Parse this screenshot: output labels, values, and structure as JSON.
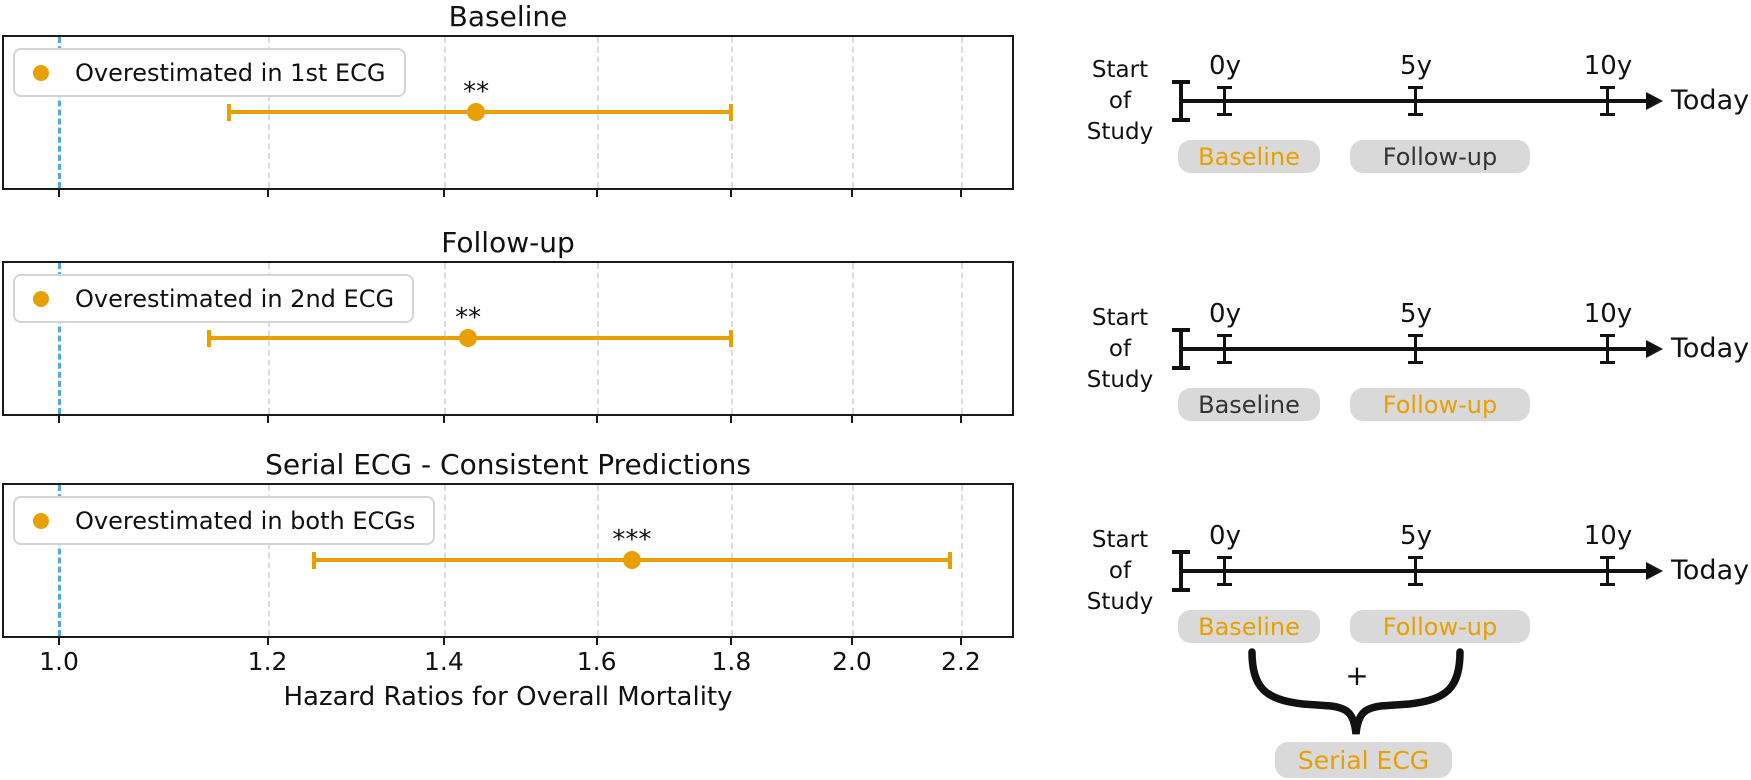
{
  "chart_data": {
    "type": "scatter",
    "subtype": "forest-plot",
    "xlabel": "Hazard Ratios for Overall Mortality",
    "xscale": "log",
    "xticks": [
      1.0,
      1.2,
      1.4,
      1.6,
      1.8,
      2.0,
      2.2
    ],
    "xlim": [
      0.975,
      2.31
    ],
    "reference_line": 1.0,
    "grid": "vertical-dashed",
    "panels": [
      {
        "title": "Baseline",
        "legend_label": "Overestimated in 1st ECG",
        "hazard_ratio": 1.44,
        "ci_low": 1.16,
        "ci_high": 1.8,
        "significance": "**"
      },
      {
        "title": "Follow-up",
        "legend_label": "Overestimated in 2nd ECG",
        "hazard_ratio": 1.43,
        "ci_low": 1.14,
        "ci_high": 1.8,
        "significance": "**"
      },
      {
        "title": "Serial ECG - Consistent Predictions",
        "legend_label": "Overestimated in both ECGs",
        "hazard_ratio": 1.65,
        "ci_low": 1.25,
        "ci_high": 2.18,
        "significance": "***"
      }
    ]
  },
  "timelines": [
    {
      "start_label_lines": [
        "Start",
        "of",
        "Study"
      ],
      "tick_labels": [
        "0y",
        "5y",
        "10y"
      ],
      "end_label": "Today",
      "badges": [
        {
          "label": "Baseline",
          "highlighted": true
        },
        {
          "label": "Follow-up",
          "highlighted": false
        }
      ]
    },
    {
      "start_label_lines": [
        "Start",
        "of",
        "Study"
      ],
      "tick_labels": [
        "0y",
        "5y",
        "10y"
      ],
      "end_label": "Today",
      "badges": [
        {
          "label": "Baseline",
          "highlighted": false
        },
        {
          "label": "Follow-up",
          "highlighted": true
        }
      ]
    },
    {
      "start_label_lines": [
        "Start",
        "of",
        "Study"
      ],
      "tick_labels": [
        "0y",
        "5y",
        "10y"
      ],
      "end_label": "Today",
      "badges": [
        {
          "label": "Baseline",
          "highlighted": true
        },
        {
          "label": "Follow-up",
          "highlighted": true
        }
      ],
      "combiner": {
        "operator": "+",
        "result_label": "Serial ECG",
        "highlighted": true
      }
    }
  ],
  "colors": {
    "accent_orange": "#E8A000",
    "reference_blue": "#54A8E0",
    "grid_gray": "#DCDCDC",
    "badge_background": "#D9D9D9",
    "ink": "#111111",
    "badge_text_dark": "#333333"
  }
}
